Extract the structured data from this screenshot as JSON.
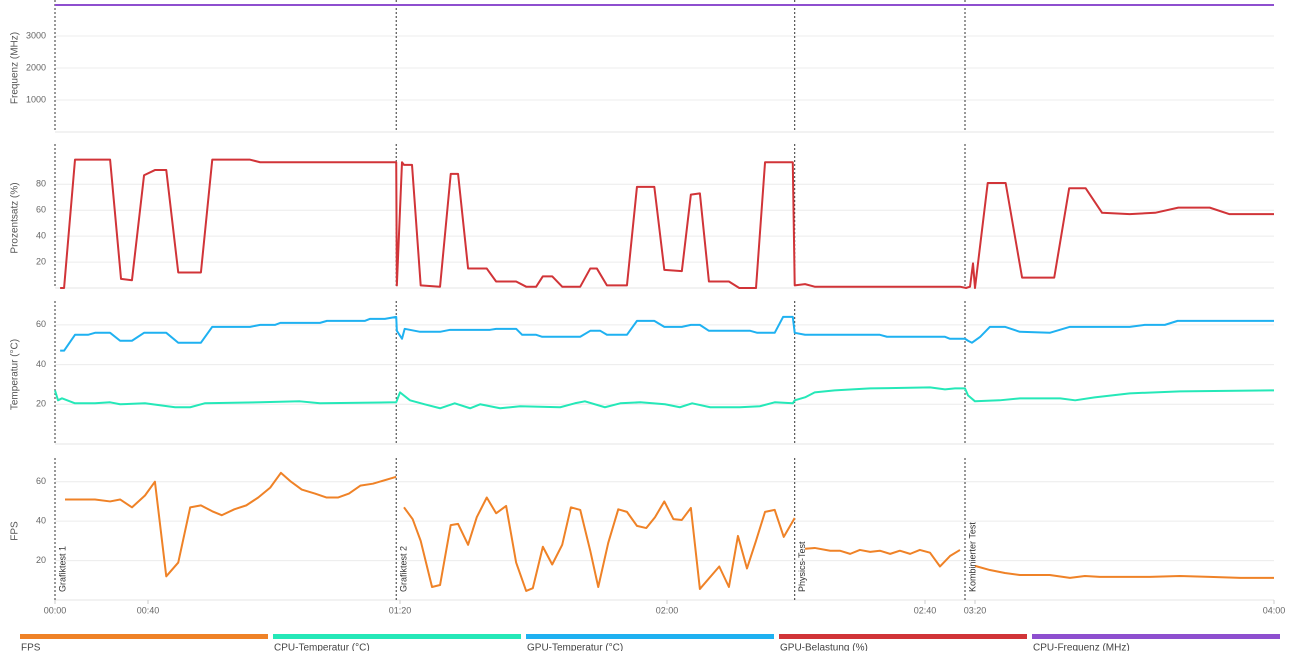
{
  "chart_data": [
    {
      "type": "line",
      "ylabel": "Frequenz (MHz)",
      "xlim": [
        0,
        240
      ],
      "ylim": [
        0,
        4000
      ],
      "yticks": [
        1000,
        2000,
        3000
      ],
      "grid": true,
      "series": [
        {
          "name": "CPU-Frequenz (MHz)",
          "color": "#8e4fcf",
          "x": [
            0,
            240
          ],
          "values": [
            3970,
            3970
          ]
        }
      ]
    },
    {
      "type": "line",
      "ylabel": "Prozentsatz (%)",
      "xlim": [
        0,
        240
      ],
      "ylim": [
        0,
        108
      ],
      "yticks": [
        20,
        40,
        60,
        80
      ],
      "grid": true,
      "series": [
        {
          "name": "GPU-Belastung (%)",
          "color": "#d13438",
          "x": [
            2.2,
            3.9,
            8.6,
            23.7,
            28.4,
            33.1,
            38.3,
            41.1,
            42.9,
            44.8,
            48.4,
            50.2,
            56.2,
            57.8,
            79.4,
            79.5,
            80.3,
            80.6,
            81.8,
            83.1,
            86,
            87.6,
            88.7,
            90.2,
            93,
            94.4,
            97.4,
            98.9,
            100.4,
            101.4,
            102.8,
            104.3,
            107,
            108.5,
            109.5,
            111,
            114,
            115.5,
            118.1,
            119.6,
            122.3,
            123.7,
            125.1,
            126.5,
            129.6,
            131.2,
            133.8,
            135.2,
            139.5,
            139.8,
            141.4,
            142.9,
            188,
            192.8,
            196,
            198.4,
            200,
            201.7,
            204.1,
            206.3,
            210.6,
            212.6,
            214.8,
            217,
            220.7,
            224.1,
            227.2,
            231.4,
            234,
            240
          ],
          "values": [
            0,
            0,
            99,
            99,
            7,
            6,
            87,
            91,
            91,
            12,
            12,
            99,
            99,
            97,
            97,
            2,
            97,
            95,
            95,
            2,
            1,
            88,
            88,
            15,
            15,
            5,
            5,
            1,
            1,
            9,
            9,
            1,
            1,
            15,
            15,
            2,
            2,
            78,
            78,
            14,
            13,
            72,
            73,
            5,
            5,
            0,
            0,
            97,
            97,
            2,
            3,
            1,
            1,
            0,
            1,
            19,
            0,
            81,
            81,
            8,
            8,
            77,
            77,
            58,
            57,
            58,
            62,
            62,
            57,
            57
          ]
        }
      ]
    },
    {
      "type": "line",
      "ylabel": "Temperatur (°C)",
      "xlim": [
        0,
        240
      ],
      "ylim": [
        0,
        70
      ],
      "yticks": [
        20,
        40,
        60
      ],
      "grid": true,
      "series": [
        {
          "name": "CPU-Temperatur (°C)",
          "color": "#25e8b8",
          "x": [
            0,
            1.3,
            3,
            8.6,
            17.2,
            23.7,
            28,
            38.7,
            41.9,
            44.3,
            46.7,
            49,
            57.8,
            64.1,
            67.3,
            79.4,
            80,
            81.5,
            83.7,
            86,
            88.2,
            90.5,
            92,
            95,
            98,
            104,
            106.2,
            107.7,
            110.7,
            113,
            116,
            119.7,
            122,
            123.9,
            126.7,
            131.3,
            134.4,
            136.7,
            139.5,
            139.8,
            141.4,
            142.9,
            146,
            151.5,
            164,
            176,
            184,
            192,
            194.4,
            200,
            203.3,
            206,
            211.4,
            213.4,
            216,
            220.7,
            227.4,
            240
          ],
          "values": [
            27,
            22,
            23,
            20.5,
            20.5,
            21,
            20,
            20.5,
            19.5,
            18.5,
            18.5,
            20.5,
            21,
            21.5,
            20.5,
            21,
            26,
            22,
            20,
            18,
            20.5,
            18,
            20,
            18,
            19,
            18.5,
            20.5,
            21.5,
            18.5,
            20.5,
            21,
            20,
            18.5,
            20.5,
            18.5,
            18.5,
            19,
            21,
            20.5,
            22,
            23.5,
            26,
            27,
            28,
            28.5,
            27.5,
            28,
            28,
            24.5,
            21.5,
            22,
            23,
            23,
            22,
            23.5,
            25.5,
            26.5,
            27
          ]
        },
        {
          "name": "GPU-Temperatur (°C)",
          "color": "#1fb1f1",
          "x": [
            2.2,
            3.9,
            8.6,
            14.2,
            17.2,
            23.7,
            28,
            33.1,
            38.3,
            42.9,
            44.8,
            48.4,
            50.2,
            56.2,
            57.8,
            60.2,
            61,
            67.3,
            68.4,
            74.4,
            75.2,
            77.6,
            79.4,
            79.5,
            80.3,
            80.7,
            83,
            86,
            87.5,
            93.5,
            94.4,
            97.4,
            98.3,
            100.4,
            101.3,
            107,
            108.5,
            110,
            111,
            114,
            115.5,
            118.1,
            119.6,
            122.3,
            123.7,
            125.1,
            126.5,
            132.9,
            134,
            136.7,
            138,
            139.5,
            139.8,
            141.4,
            153,
            154.1,
            176,
            180,
            192,
            194.4,
            197.6,
            200.7,
            202,
            204,
            206,
            210,
            212.7,
            220.7,
            222.7,
            225.4,
            227.1,
            240
          ],
          "values": [
            47,
            47,
            55,
            55,
            56,
            56,
            52,
            52,
            56,
            56,
            51,
            51,
            59,
            59,
            60,
            60,
            61,
            61,
            62,
            62,
            63,
            63,
            64,
            57,
            53,
            58,
            56.5,
            56.5,
            57.5,
            57.5,
            58,
            58,
            55,
            55,
            54,
            54,
            57,
            57,
            55,
            55,
            62,
            62,
            59,
            59,
            60,
            60,
            57,
            57,
            56,
            56,
            64,
            64,
            56,
            55,
            55,
            54,
            54,
            53,
            53,
            52,
            51,
            54,
            59,
            59,
            56.5,
            56,
            59,
            59,
            60,
            60,
            62,
            62
          ]
        }
      ]
    },
    {
      "type": "line",
      "ylabel": "FPS",
      "xlim": [
        0,
        240
      ],
      "ylim": [
        0,
        70
      ],
      "yticks": [
        20,
        40,
        60
      ],
      "grid": true,
      "xticks": [
        {
          "value": 0,
          "label": "00:00"
        },
        {
          "value": 40,
          "label": "00:40"
        },
        {
          "value": 80,
          "label": "01:20"
        },
        {
          "value": 120,
          "label": "02:00"
        },
        {
          "value": 160,
          "label": "02:40"
        },
        {
          "value": 200,
          "label": "03:20"
        },
        {
          "value": 240,
          "label": "04:00"
        }
      ],
      "markers": [
        {
          "x": 0,
          "label": "Grafiktest 1"
        },
        {
          "x": 79.4,
          "label": "Grafiktest 2"
        },
        {
          "x": 139.8,
          "label": "Physics-Test"
        },
        {
          "x": 192,
          "label": "Kombinierter Test"
        }
      ],
      "series": [
        {
          "name": "FPS",
          "color": "#ef8227",
          "x": [
            4.3,
            8.6,
            17.2,
            23.7,
            28,
            33.1,
            38.7,
            41.1,
            42.9,
            44.8,
            46.7,
            48.4,
            50.2,
            51.7,
            53.7,
            55.6,
            57.5,
            59.4,
            61.1,
            62.7,
            64.4,
            66.5,
            68.3,
            70.2,
            71.9,
            73.7,
            75.7,
            79.4,
            null,
            80.6,
            81.9,
            83.1,
            84.8,
            86,
            87.6,
            88.7,
            90.2,
            91.5,
            93,
            94.4,
            95.9,
            97.4,
            98.9,
            99.9,
            101.4,
            102.8,
            104.3,
            105.6,
            107,
            108.5,
            109.7,
            111.2,
            112.7,
            114,
            115.5,
            116.9,
            118.2,
            119.6,
            121,
            122.3,
            123.7,
            125.1,
            128.1,
            129.6,
            131,
            132.4,
            133.8,
            135.2,
            136.7,
            138.1,
            139.8,
            null,
            141.4,
            142.9,
            145.3,
            146.8,
            148.4,
            149.9,
            151.5,
            153,
            154.6,
            156.1,
            157.7,
            159.2,
            164,
            172,
            180,
            188,
            null,
            200,
            202,
            204,
            206,
            210,
            212.7,
            214.7,
            216.7,
            223.4,
            227.4,
            231.4,
            235.5,
            240
          ],
          "values": [
            51,
            51,
            51,
            50,
            51,
            47,
            53,
            60,
            12,
            19,
            47,
            48,
            45,
            43,
            46,
            48,
            52,
            57,
            64.5,
            60,
            56,
            54,
            52,
            52,
            54,
            58,
            59,
            62.5,
            null,
            47,
            41,
            30,
            6.6,
            7.6,
            38,
            38.6,
            28,
            42,
            52,
            44,
            47.7,
            19,
            4.6,
            6,
            27,
            18,
            28,
            47,
            45.7,
            25,
            6.6,
            29,
            46,
            44.7,
            37.6,
            36.5,
            42,
            50,
            41,
            40.6,
            46.7,
            5.6,
            17,
            6.6,
            32.5,
            16,
            30,
            44.7,
            45.7,
            32,
            41.6,
            null,
            26,
            26.4,
            25,
            25,
            23.4,
            25.4,
            24.4,
            25,
            23.4,
            25,
            23.4,
            25.4,
            24,
            17,
            22.3,
            25.4,
            null,
            17.3,
            15.2,
            13.7,
            12.7,
            12.7,
            11.2,
            12.2,
            11.7,
            11.7,
            12.2,
            11.7,
            11.2,
            11.2
          ]
        }
      ]
    }
  ]
}
